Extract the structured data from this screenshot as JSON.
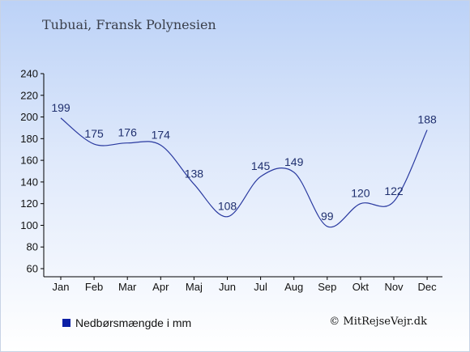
{
  "header": {
    "title": "Tubuai, Fransk Polynesien"
  },
  "legend": {
    "label": "Nedbørsmængde i mm",
    "color": "#0b1fa6"
  },
  "credit": {
    "text": "© MitRejseVejr.dk"
  },
  "chart_data": {
    "type": "line",
    "categories": [
      "Jan",
      "Feb",
      "Mar",
      "Apr",
      "Maj",
      "Jun",
      "Jul",
      "Aug",
      "Sep",
      "Okt",
      "Nov",
      "Dec"
    ],
    "series": [
      {
        "name": "Nedbørsmængde i mm",
        "values": [
          199,
          175,
          176,
          174,
          138,
          108,
          145,
          149,
          99,
          120,
          122,
          188
        ],
        "color": "#2a3aa0"
      }
    ],
    "ylim": [
      60,
      240
    ],
    "yticks": [
      60,
      80,
      100,
      120,
      140,
      160,
      180,
      200,
      220,
      240
    ],
    "legend_position": "bottom-left",
    "grid": false
  }
}
